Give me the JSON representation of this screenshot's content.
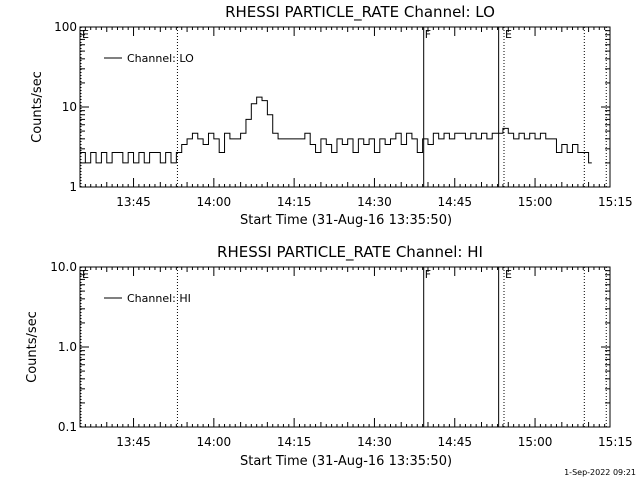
{
  "footer": {
    "timestamp": "1-Sep-2022 09:21"
  },
  "chart_data": [
    {
      "type": "line",
      "title": "RHESSI PARTICLE_RATE Channel: LO",
      "xlabel": "Start Time (31-Aug-16 13:35:50)",
      "ylabel": "Counts/sec",
      "yscale": "log",
      "ylim": [
        1,
        100
      ],
      "yticks": [
        1,
        10,
        100
      ],
      "ytick_labels": [
        "1",
        "10",
        "100"
      ],
      "xlim_min": [
        0,
        99
      ],
      "xticks_min": [
        10,
        25,
        40,
        55,
        70,
        85,
        100
      ],
      "xtick_labels": [
        "13:45",
        "14:00",
        "14:15",
        "14:30",
        "14:45",
        "15:00",
        "15:15"
      ],
      "legend_entry": "Channel: LO",
      "legend_position": "top-left",
      "markers": [
        {
          "label": "E",
          "t_min": 0,
          "style": "dotted"
        },
        {
          "label": "",
          "t_min": 18.2,
          "style": "dotted"
        },
        {
          "label": "F",
          "t_min": 64.2,
          "style": "solid"
        },
        {
          "label": "",
          "t_min": 78.2,
          "style": "solid"
        },
        {
          "label": "E",
          "t_min": 79.2,
          "style": "dotted"
        },
        {
          "label": "",
          "t_min": 94.2,
          "style": "dotted"
        },
        {
          "label": "",
          "t_min": 98.3,
          "style": "dotted"
        }
      ],
      "series": [
        {
          "name": "Channel: LO",
          "x": [
            0,
            1,
            2,
            3,
            4,
            5,
            6,
            7,
            8,
            9,
            10,
            11,
            12,
            13,
            14,
            15,
            16,
            17,
            18,
            19,
            20,
            21,
            22,
            23,
            24,
            25,
            26,
            27,
            28,
            29,
            30,
            31,
            32,
            33,
            34,
            35,
            36,
            37,
            38,
            39,
            40,
            41,
            42,
            43,
            44,
            45,
            46,
            47,
            48,
            49,
            50,
            51,
            52,
            53,
            54,
            55,
            56,
            57,
            58,
            59,
            60,
            61,
            62,
            63,
            64,
            65,
            66,
            67,
            68,
            69,
            70,
            71,
            72,
            73,
            74,
            75,
            76,
            77,
            78,
            79,
            80,
            81,
            82,
            83,
            84,
            85,
            86,
            87,
            88,
            89,
            90,
            91,
            92,
            93,
            94,
            95
          ],
          "y": [
            2.7,
            2,
            2.7,
            2,
            2.7,
            2,
            2.7,
            2.7,
            2,
            2.7,
            2,
            2.7,
            2,
            2.7,
            2.7,
            2,
            2.7,
            2,
            2.7,
            3.4,
            4,
            4.7,
            4,
            3.4,
            4.7,
            4,
            2.7,
            4.7,
            4,
            4,
            4.7,
            7,
            11,
            13.3,
            12,
            8,
            4.7,
            4,
            4,
            4,
            4,
            4,
            4.7,
            3.4,
            2.7,
            4,
            3.4,
            2.7,
            4,
            3.4,
            4,
            2.7,
            4,
            3.4,
            4,
            2.7,
            4,
            3.4,
            4,
            4.7,
            3.4,
            4.7,
            4,
            2.7,
            4,
            3.4,
            4.7,
            4,
            4.7,
            4,
            4.7,
            4.7,
            4,
            4.7,
            4,
            4.7,
            4,
            4.7,
            4.7,
            5.4,
            4.7,
            4,
            4.7,
            4,
            4.7,
            4,
            4.7,
            4,
            4,
            2.7,
            3.4,
            2.7,
            3.4,
            2.7,
            2.7,
            2
          ]
        }
      ]
    },
    {
      "type": "line",
      "title": "RHESSI PARTICLE_RATE Channel: HI",
      "xlabel": "Start Time (31-Aug-16 13:35:50)",
      "ylabel": "Counts/sec",
      "yscale": "log",
      "ylim": [
        0.1,
        10
      ],
      "yticks": [
        0.1,
        1,
        10
      ],
      "ytick_labels": [
        "0.1",
        "1.0",
        "10.0"
      ],
      "xlim_min": [
        0,
        99
      ],
      "xticks_min": [
        10,
        25,
        40,
        55,
        70,
        85,
        100
      ],
      "xtick_labels": [
        "13:45",
        "14:00",
        "14:15",
        "14:30",
        "14:45",
        "15:00",
        "15:15"
      ],
      "legend_entry": "Channel: HI",
      "legend_position": "top-left",
      "markers": [
        {
          "label": "E",
          "t_min": 0,
          "style": "dotted"
        },
        {
          "label": "",
          "t_min": 18.2,
          "style": "dotted"
        },
        {
          "label": "F",
          "t_min": 64.2,
          "style": "solid"
        },
        {
          "label": "",
          "t_min": 78.2,
          "style": "solid"
        },
        {
          "label": "E",
          "t_min": 79.2,
          "style": "dotted"
        },
        {
          "label": "",
          "t_min": 94.2,
          "style": "dotted"
        },
        {
          "label": "",
          "t_min": 98.3,
          "style": "dotted"
        }
      ],
      "series": [
        {
          "name": "Channel: HI",
          "x": [],
          "y": []
        }
      ]
    }
  ]
}
